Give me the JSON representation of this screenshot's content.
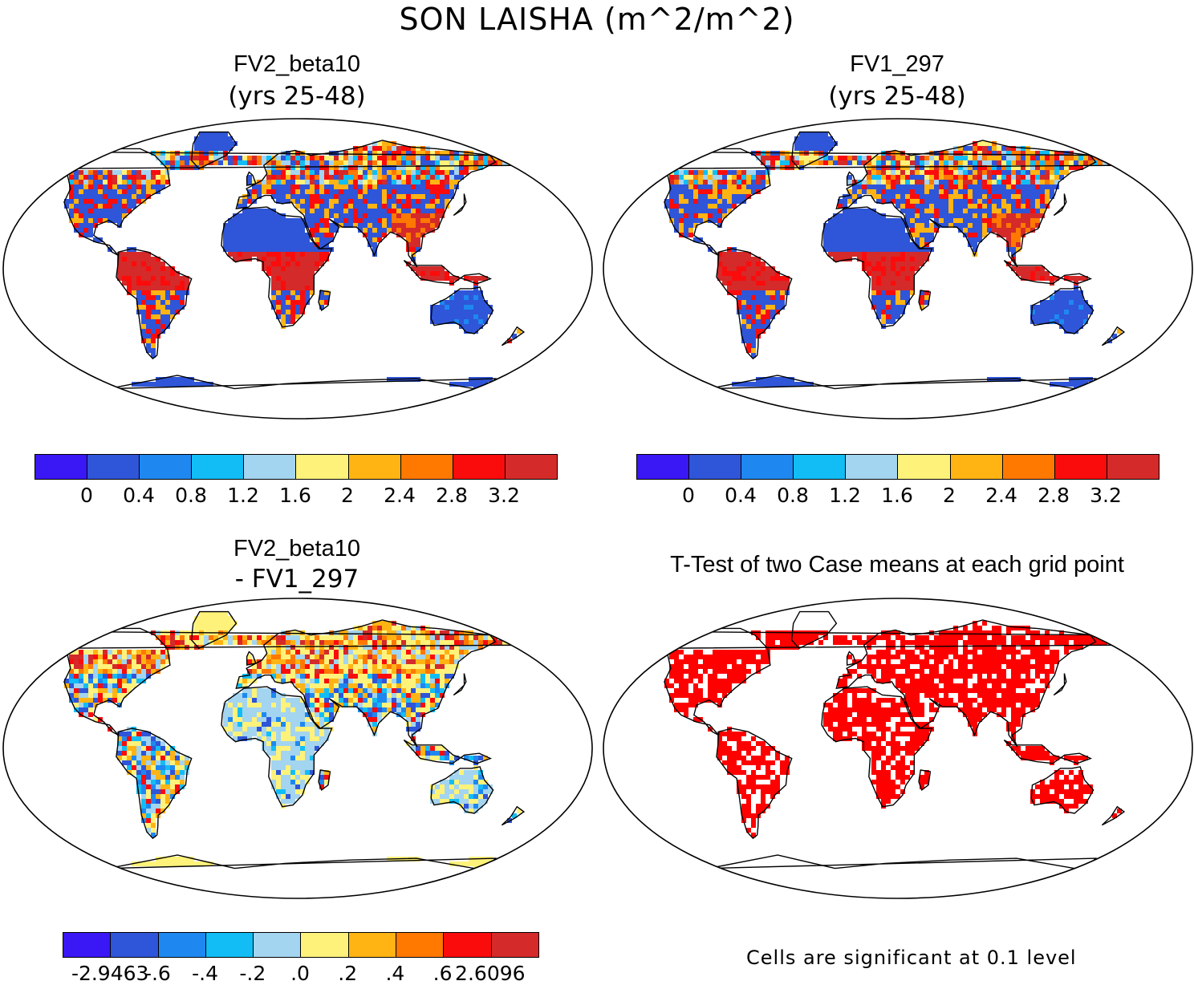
{
  "main_title": "SON LAISHA (m^2/m^2)",
  "panels": [
    {
      "id": "p1",
      "title": "FV2_beta10",
      "subtitle": "(yrs 25-48)"
    },
    {
      "id": "p2",
      "title": "FV1_297",
      "subtitle": "(yrs 25-48)"
    },
    {
      "id": "p3",
      "title": "FV2_beta10",
      "subtitle": "- FV1_297"
    },
    {
      "id": "p4",
      "title": "T-Test of two Case means at each grid point",
      "subtitle": ""
    }
  ],
  "colorbar_main": {
    "colors": [
      "#3a17f5",
      "#2f55d8",
      "#1e88f0",
      "#12bdf5",
      "#a3d4f0",
      "#fff27a",
      "#ffb414",
      "#ff7800",
      "#fa0c0c",
      "#d42a2a"
    ],
    "ticks": [
      "0",
      "0.4",
      "0.8",
      "1.2",
      "1.6",
      "2",
      "2.4",
      "2.8",
      "3.2"
    ]
  },
  "colorbar_diff": {
    "colors": [
      "#3a17f5",
      "#2f55d8",
      "#1e88f0",
      "#12bdf5",
      "#a3d4f0",
      "#fff27a",
      "#ffb414",
      "#ff7800",
      "#fa0c0c",
      "#d42a2a"
    ],
    "ticks": [
      "-2.9463",
      "-.6",
      "-.4",
      "-.2",
      ".0",
      ".2",
      ".4",
      ".6",
      "2.6096"
    ]
  },
  "significance_note": "Cells are significant at 0.1 level",
  "significance_color": "#ff0000",
  "ocean_color": "#ffffff"
}
